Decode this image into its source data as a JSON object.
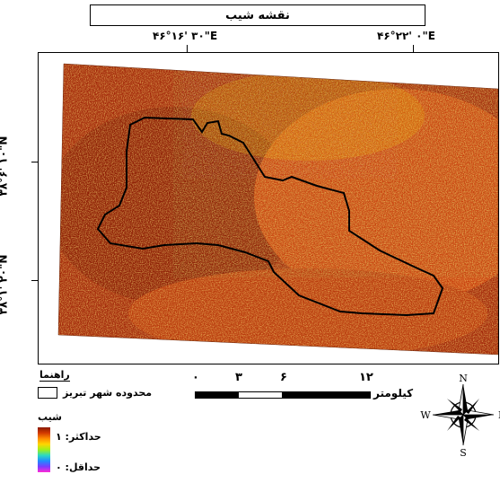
{
  "map": {
    "title": "نقشه شیب",
    "coords_top": [
      "۴۶°۱۶' ۳۰\"E",
      "۴۶°۲۲' ۰\"E"
    ],
    "coords_left": [
      "۳۸°۶' ۱۰\"N",
      "۳۸°۱' ۲۰\"N"
    ]
  },
  "legend": {
    "title": "راهنما",
    "boundary_label": "محدوده شهر تبریز",
    "slope_title": "شیب",
    "max_label": "حداکثر: ۱",
    "min_label": "حداقل: ۰"
  },
  "scalebar": {
    "ticks": [
      "۰",
      "۳",
      "۶",
      "۱۲"
    ],
    "unit": "کیلومتر"
  },
  "north_arrow": {
    "n": "N",
    "s": "S",
    "e": "E",
    "w": "W"
  },
  "colors": {
    "slope_high": "#8b1a00",
    "slope_mid": "#ffd600",
    "slope_low": "#ff2bd6",
    "boundary": "#000000"
  }
}
